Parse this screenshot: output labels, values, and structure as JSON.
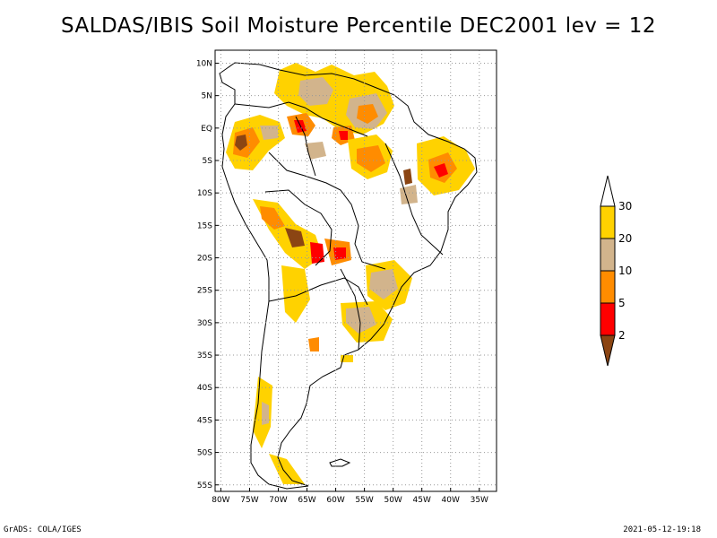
{
  "title": "SALDAS/IBIS Soil Moisture Percentile DEC2001 lev = 12",
  "footer": {
    "left": "GrADS: COLA/IGES",
    "right": "2021-05-12-19:18"
  },
  "map": {
    "lon_range": [
      -81,
      -32
    ],
    "lat_range": [
      -56,
      12
    ],
    "lon_ticks": [
      "80W",
      "75W",
      "70W",
      "65W",
      "60W",
      "55W",
      "50W",
      "45W",
      "40W",
      "35W"
    ],
    "lon_tick_values": [
      -80,
      -75,
      -70,
      -65,
      -60,
      -55,
      -50,
      -45,
      -40,
      -35
    ],
    "lat_ticks": [
      "10N",
      "5N",
      "EQ",
      "5S",
      "10S",
      "15S",
      "20S",
      "25S",
      "30S",
      "35S",
      "40S",
      "45S",
      "50S",
      "55S"
    ],
    "lat_tick_values": [
      10,
      5,
      0,
      -5,
      -10,
      -15,
      -20,
      -25,
      -30,
      -35,
      -40,
      -45,
      -50,
      -55
    ],
    "grid": true
  },
  "legend": {
    "labels": [
      "30",
      "20",
      "10",
      "5",
      "2"
    ],
    "colors": [
      "#ffd200",
      "#d2b48c",
      "#ff8c00",
      "#ff0000",
      "#8b4513"
    ],
    "over_color": "#ffffff"
  }
}
